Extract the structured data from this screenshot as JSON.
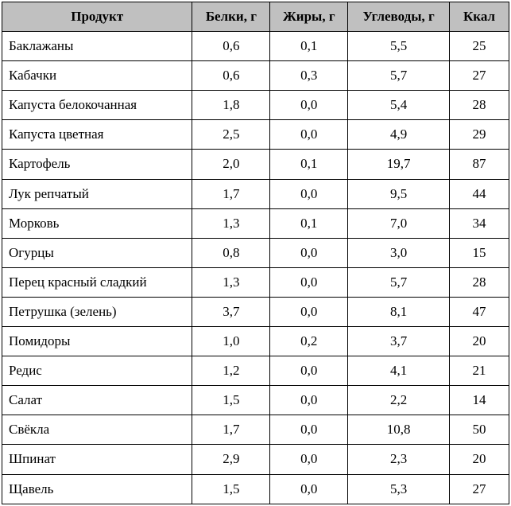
{
  "table": {
    "header_bg": "#c0c0c0",
    "border_color": "#000000",
    "columns": [
      {
        "key": "product",
        "label": "Продукт"
      },
      {
        "key": "protein",
        "label": "Белки, г"
      },
      {
        "key": "fat",
        "label": "Жиры, г"
      },
      {
        "key": "carb",
        "label": "Углеводы, г"
      },
      {
        "key": "kcal",
        "label": "Ккал"
      }
    ],
    "rows": [
      {
        "product": "Баклажаны",
        "protein": "0,6",
        "fat": "0,1",
        "carb": "5,5",
        "kcal": "25"
      },
      {
        "product": "Кабачки",
        "protein": "0,6",
        "fat": "0,3",
        "carb": "5,7",
        "kcal": "27"
      },
      {
        "product": "Капуста белокочанная",
        "protein": "1,8",
        "fat": "0,0",
        "carb": "5,4",
        "kcal": "28"
      },
      {
        "product": "Капуста цветная",
        "protein": "2,5",
        "fat": "0,0",
        "carb": "4,9",
        "kcal": "29"
      },
      {
        "product": "Картофель",
        "protein": "2,0",
        "fat": "0,1",
        "carb": "19,7",
        "kcal": "87"
      },
      {
        "product": "Лук репчатый",
        "protein": "1,7",
        "fat": "0,0",
        "carb": "9,5",
        "kcal": "44"
      },
      {
        "product": "Морковь",
        "protein": "1,3",
        "fat": "0,1",
        "carb": "7,0",
        "kcal": "34"
      },
      {
        "product": "Огурцы",
        "protein": "0,8",
        "fat": "0,0",
        "carb": "3,0",
        "kcal": "15"
      },
      {
        "product": "Перец красный сладкий",
        "protein": "1,3",
        "fat": "0,0",
        "carb": "5,7",
        "kcal": "28"
      },
      {
        "product": "Петрушка (зелень)",
        "protein": "3,7",
        "fat": "0,0",
        "carb": "8,1",
        "kcal": "47"
      },
      {
        "product": "Помидоры",
        "protein": "1,0",
        "fat": "0,2",
        "carb": "3,7",
        "kcal": "20"
      },
      {
        "product": "Редис",
        "protein": "1,2",
        "fat": "0,0",
        "carb": "4,1",
        "kcal": "21"
      },
      {
        "product": "Салат",
        "protein": "1,5",
        "fat": "0,0",
        "carb": "2,2",
        "kcal": "14"
      },
      {
        "product": "Свёкла",
        "protein": "1,7",
        "fat": "0,0",
        "carb": "10,8",
        "kcal": "50"
      },
      {
        "product": "Шпинат",
        "protein": "2,9",
        "fat": "0,0",
        "carb": "2,3",
        "kcal": "20"
      },
      {
        "product": "Щавель",
        "protein": "1,5",
        "fat": "0,0",
        "carb": "5,3",
        "kcal": "27"
      }
    ]
  }
}
